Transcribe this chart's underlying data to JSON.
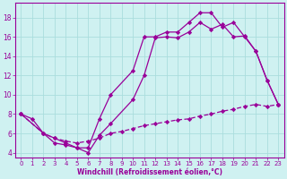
{
  "xlabel": "Windchill (Refroidissement éolien,°C)",
  "bg_color": "#cff1f1",
  "line_color": "#990099",
  "grid_color": "#aadddd",
  "xlim": [
    -0.5,
    23.5
  ],
  "ylim": [
    3.5,
    19.5
  ],
  "xticks": [
    0,
    1,
    2,
    3,
    4,
    5,
    6,
    7,
    8,
    9,
    10,
    11,
    12,
    13,
    14,
    15,
    16,
    17,
    18,
    19,
    20,
    21,
    22,
    23
  ],
  "yticks": [
    4,
    6,
    8,
    10,
    12,
    14,
    16,
    18
  ],
  "line1_x": [
    0,
    1,
    2,
    3,
    4,
    5,
    6,
    7,
    8,
    10,
    11,
    12,
    13,
    14,
    15,
    16,
    17,
    18,
    19,
    20,
    21,
    22,
    23
  ],
  "line1_y": [
    8,
    7.5,
    6,
    5.5,
    5,
    4.5,
    4.5,
    7.5,
    10,
    12.5,
    16,
    16,
    16.5,
    16.5,
    17.5,
    18.5,
    18.5,
    17,
    17.5,
    16,
    14.5,
    11.5,
    9
  ],
  "line2_x": [
    0,
    2,
    3,
    4,
    5,
    6,
    7,
    8,
    10,
    11,
    12,
    13,
    14,
    15,
    16,
    17,
    18,
    19,
    20,
    21,
    22,
    23
  ],
  "line2_y": [
    8,
    6,
    5,
    4.8,
    4.5,
    4,
    5.8,
    7,
    9.5,
    12,
    15.9,
    16,
    15.9,
    16.5,
    17.5,
    16.8,
    17.3,
    16,
    16.1,
    14.5,
    11.5,
    9
  ],
  "line3_x": [
    0,
    2,
    3,
    4,
    5,
    6,
    7,
    8,
    9,
    10,
    11,
    12,
    13,
    14,
    15,
    16,
    17,
    18,
    19,
    20,
    21,
    22,
    23
  ],
  "line3_y": [
    8,
    6,
    5.5,
    5.2,
    5.0,
    5.2,
    5.5,
    6.0,
    6.2,
    6.5,
    6.8,
    7.0,
    7.2,
    7.4,
    7.5,
    7.8,
    8.0,
    8.3,
    8.5,
    8.8,
    9.0,
    8.8,
    9.0
  ]
}
